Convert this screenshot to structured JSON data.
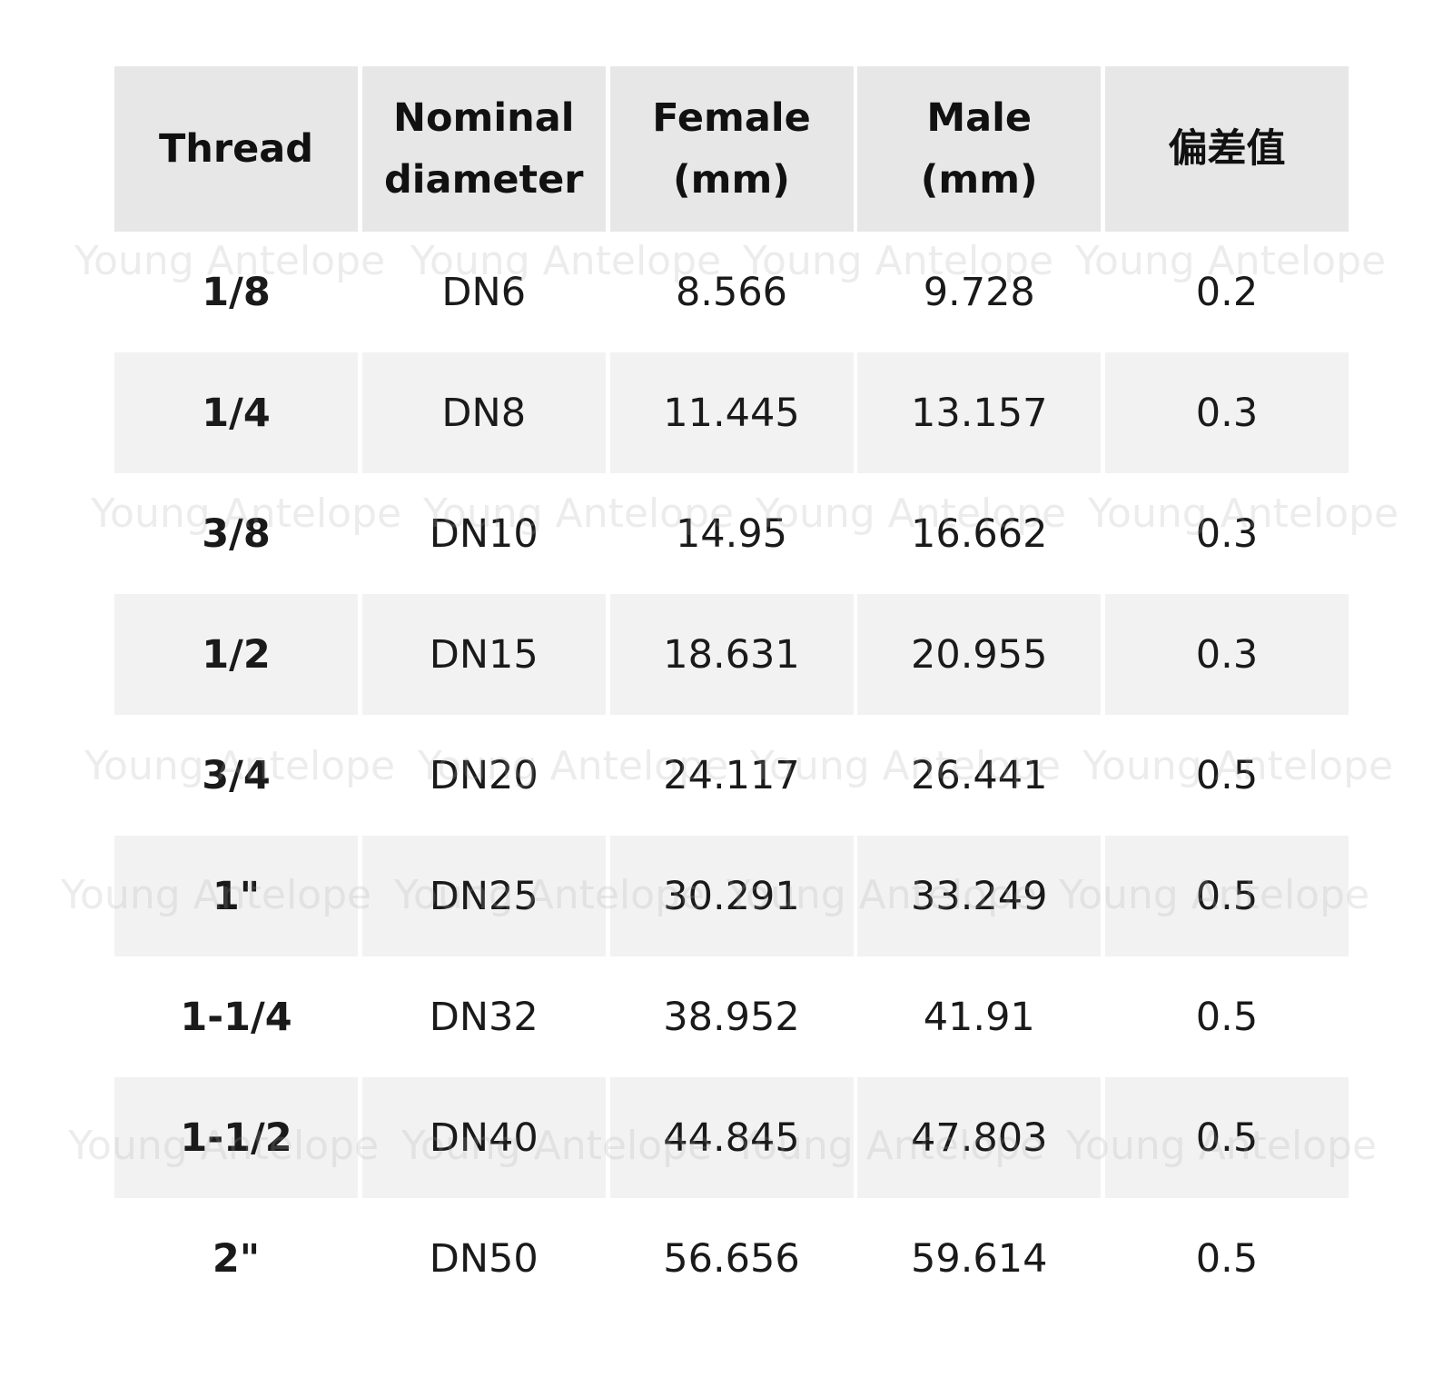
{
  "watermark": "Young Antelope",
  "table": {
    "headers": [
      "Thread",
      "Nominal\ndiameter",
      "Female\n(mm)",
      "Male\n(mm)",
      "偏差值"
    ],
    "rows": [
      [
        "1/8",
        "DN6",
        "8.566",
        "9.728",
        "0.2"
      ],
      [
        "1/4",
        "DN8",
        "11.445",
        "13.157",
        "0.3"
      ],
      [
        "3/8",
        "DN10",
        "14.95",
        "16.662",
        "0.3"
      ],
      [
        "1/2",
        "DN15",
        "18.631",
        "20.955",
        "0.3"
      ],
      [
        "3/4",
        "DN20",
        "24.117",
        "26.441",
        "0.5"
      ],
      [
        "1\"",
        "DN25",
        "30.291",
        "33.249",
        "0.5"
      ],
      [
        "1-1/4",
        "DN32",
        "38.952",
        "41.91",
        "0.5"
      ],
      [
        "1-1/2",
        "DN40",
        "44.845",
        "47.803",
        "0.5"
      ],
      [
        "2\"",
        "DN50",
        "56.656",
        "59.614",
        "0.5"
      ]
    ]
  },
  "colors": {
    "header_bg": "#e7e7e7",
    "stripe_bg": "#f2f2f2",
    "page_bg": "#ffffff"
  }
}
